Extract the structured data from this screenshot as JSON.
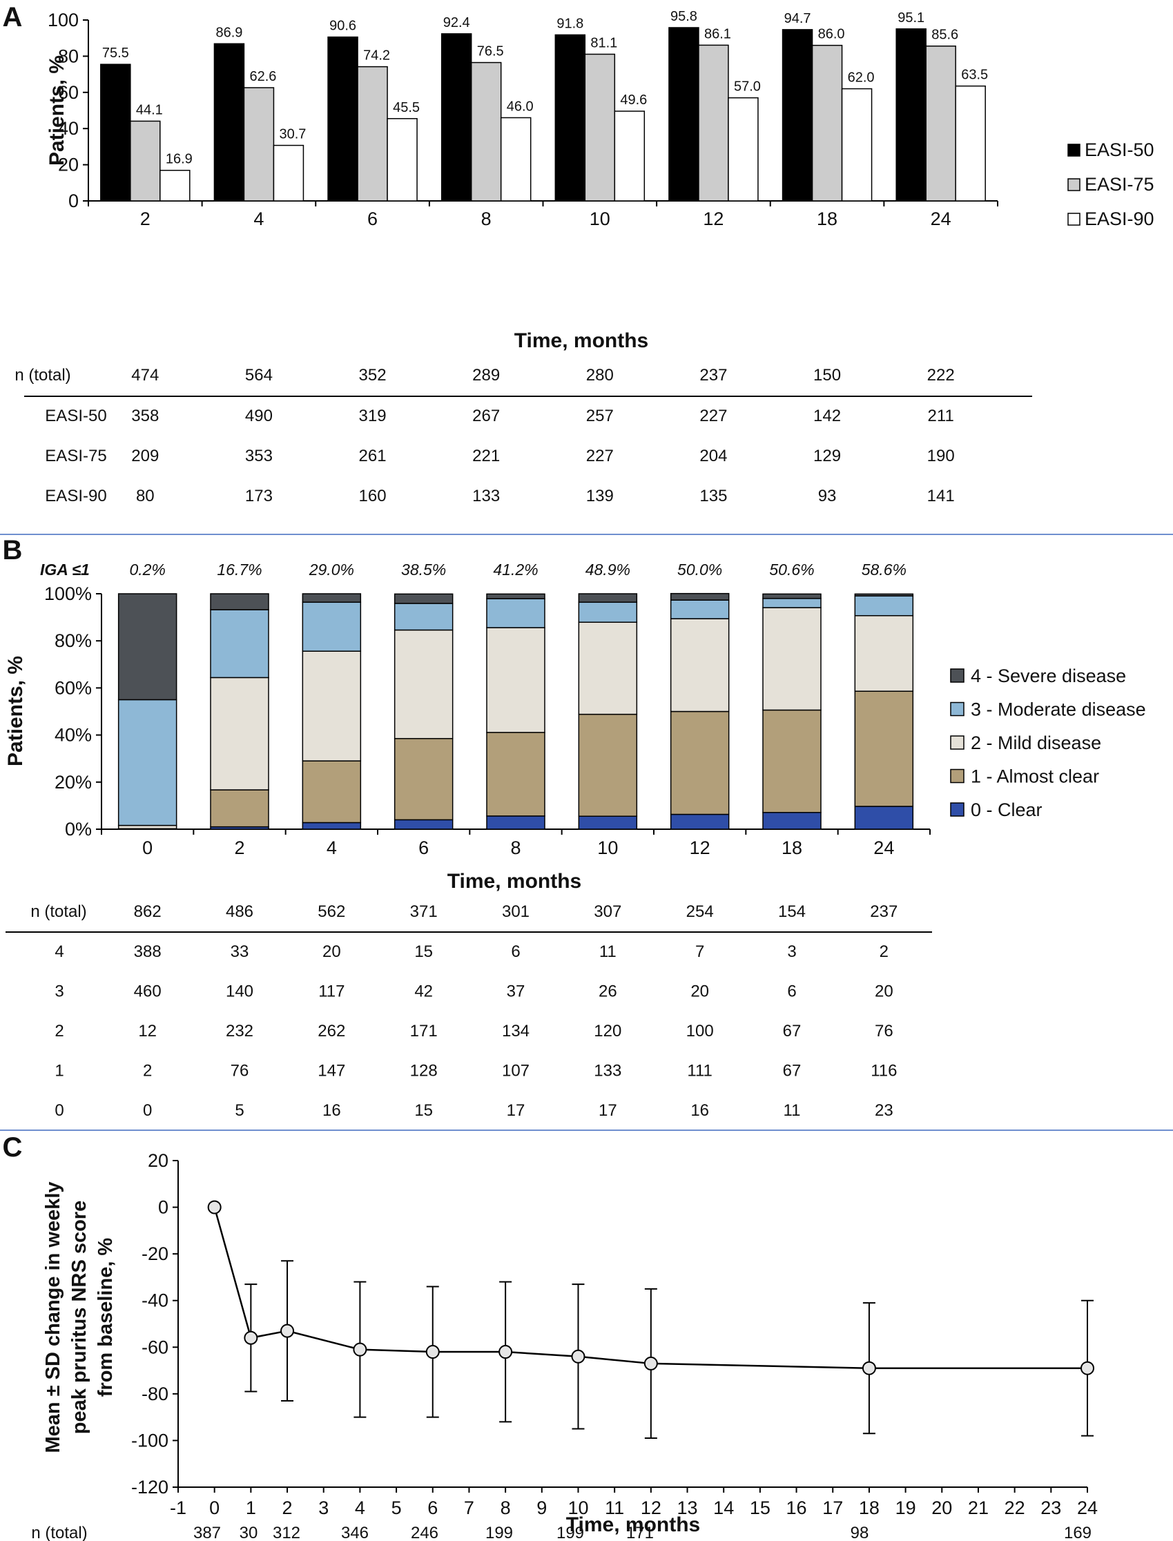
{
  "chart_data": [
    {
      "panel": "A",
      "type": "bar",
      "xlabel": "Time, months",
      "ylabel": "Patients, %",
      "ylim": [
        0,
        100
      ],
      "yticks": [
        0,
        20,
        40,
        60,
        80,
        100
      ],
      "categories": [
        "2",
        "4",
        "6",
        "8",
        "10",
        "12",
        "18",
        "24"
      ],
      "series": [
        {
          "name": "EASI-50",
          "color": "#000000",
          "values": [
            75.5,
            86.9,
            90.6,
            92.4,
            91.8,
            95.8,
            94.7,
            95.1
          ],
          "labels": [
            "75.5",
            "86.9",
            "90.6",
            "92.4",
            "91.8",
            "95.8",
            "94.7",
            "95.1"
          ]
        },
        {
          "name": "EASI-75",
          "color": "#cccccc",
          "values": [
            44.1,
            62.6,
            74.2,
            76.5,
            81.1,
            86.1,
            86.0,
            85.6
          ],
          "labels": [
            "44.1",
            "62.6",
            "74.2",
            "76.5",
            "81.1",
            "86.1",
            "86.0",
            "85.6"
          ]
        },
        {
          "name": "EASI-90",
          "color": "#ffffff",
          "values": [
            16.9,
            30.7,
            45.5,
            46.0,
            49.6,
            57.0,
            62.0,
            63.5
          ],
          "labels": [
            "16.9",
            "30.7",
            "45.5",
            "46.0",
            "49.6",
            "57.0",
            "62.0",
            "63.5"
          ]
        }
      ],
      "legend": "right",
      "table": {
        "header_label": "n (total)",
        "header_values": [
          "474",
          "564",
          "352",
          "289",
          "280",
          "237",
          "150",
          "222"
        ],
        "rows": [
          {
            "label": "EASI-50",
            "values": [
              "358",
              "490",
              "319",
              "267",
              "257",
              "227",
              "142",
              "211"
            ]
          },
          {
            "label": "EASI-75",
            "values": [
              "209",
              "353",
              "261",
              "221",
              "227",
              "204",
              "129",
              "190"
            ]
          },
          {
            "label": "EASI-90",
            "values": [
              "80",
              "173",
              "160",
              "133",
              "139",
              "135",
              "93",
              "141"
            ]
          }
        ]
      }
    },
    {
      "panel": "B",
      "type": "bar",
      "stacked": true,
      "xlabel": "Time, months",
      "ylabel": "Patients, %",
      "ylim": [
        0,
        100
      ],
      "yticks": [
        "0%",
        "20%",
        "40%",
        "60%",
        "80%",
        "100%"
      ],
      "categories": [
        "0",
        "2",
        "4",
        "6",
        "8",
        "10",
        "12",
        "18",
        "24"
      ],
      "annotation_label": "IGA ≤1",
      "annotations": [
        "0.2%",
        "16.7%",
        "29.0%",
        "38.5%",
        "41.2%",
        "48.9%",
        "50.0%",
        "50.6%",
        "58.6%"
      ],
      "series": [
        {
          "name": "0 - Clear",
          "color": "#2f4ea8",
          "values": [
            0,
            1.0,
            2.8,
            4.0,
            5.6,
            5.5,
            6.3,
            7.1,
            9.7
          ]
        },
        {
          "name": "1 - Almost clear",
          "color": "#b29f7a",
          "values": [
            0.2,
            15.7,
            26.2,
            34.5,
            35.5,
            43.3,
            43.7,
            43.5,
            48.9
          ]
        },
        {
          "name": "2 - Mild disease",
          "color": "#e5e1d8",
          "values": [
            1.4,
            47.7,
            46.6,
            46.1,
            44.5,
            39.1,
            39.4,
            43.5,
            32.1
          ]
        },
        {
          "name": "3 - Moderate disease",
          "color": "#8eb8d6",
          "values": [
            53.4,
            28.8,
            20.8,
            11.3,
            12.3,
            8.5,
            7.9,
            3.9,
            8.4
          ]
        },
        {
          "name": "4 - Severe disease",
          "color": "#4d5156",
          "values": [
            45.0,
            6.8,
            3.6,
            4.0,
            2.0,
            3.6,
            2.8,
            1.9,
            0.8
          ]
        }
      ],
      "legend": "right",
      "table": {
        "header_label": "n (total)",
        "header_values": [
          "862",
          "486",
          "562",
          "371",
          "301",
          "307",
          "254",
          "154",
          "237"
        ],
        "rows": [
          {
            "label": "4",
            "values": [
              "388",
              "33",
              "20",
              "15",
              "6",
              "11",
              "7",
              "3",
              "2"
            ]
          },
          {
            "label": "3",
            "values": [
              "460",
              "140",
              "117",
              "42",
              "37",
              "26",
              "20",
              "6",
              "20"
            ]
          },
          {
            "label": "2",
            "values": [
              "12",
              "232",
              "262",
              "171",
              "134",
              "120",
              "100",
              "67",
              "76"
            ]
          },
          {
            "label": "1",
            "values": [
              "2",
              "76",
              "147",
              "128",
              "107",
              "133",
              "111",
              "67",
              "116"
            ]
          },
          {
            "label": "0",
            "values": [
              "0",
              "5",
              "16",
              "15",
              "17",
              "17",
              "16",
              "11",
              "23"
            ]
          }
        ]
      }
    },
    {
      "panel": "C",
      "type": "line",
      "xlabel": "Time, months",
      "ylabel_lines": [
        "Mean ± SD change in weekly",
        "peak pruritus NRS score",
        "from baseline, %"
      ],
      "xlim": [
        -1,
        24
      ],
      "ylim": [
        -120,
        20
      ],
      "yticks": [
        20,
        0,
        -20,
        -40,
        -60,
        -80,
        -100,
        -120
      ],
      "xticks": [
        -1,
        0,
        1,
        2,
        3,
        4,
        5,
        6,
        7,
        8,
        9,
        10,
        11,
        12,
        13,
        14,
        15,
        16,
        17,
        18,
        19,
        20,
        21,
        22,
        23,
        24
      ],
      "x": [
        0,
        1,
        2,
        4,
        6,
        8,
        10,
        12,
        18,
        24
      ],
      "y": [
        0,
        -56,
        -53,
        -61,
        -62,
        -62,
        -64,
        -67,
        -69,
        -69
      ],
      "sd": [
        0,
        23,
        30,
        29,
        28,
        30,
        31,
        32,
        28,
        29
      ],
      "n_label": "n (total)",
      "n_values": [
        "387",
        "30",
        "312",
        "346",
        "246",
        "199",
        "199",
        "171",
        "98",
        "169"
      ]
    }
  ],
  "panels": {
    "A": {
      "letter": "A"
    },
    "B": {
      "letter": "B"
    },
    "C": {
      "letter": "C"
    }
  }
}
